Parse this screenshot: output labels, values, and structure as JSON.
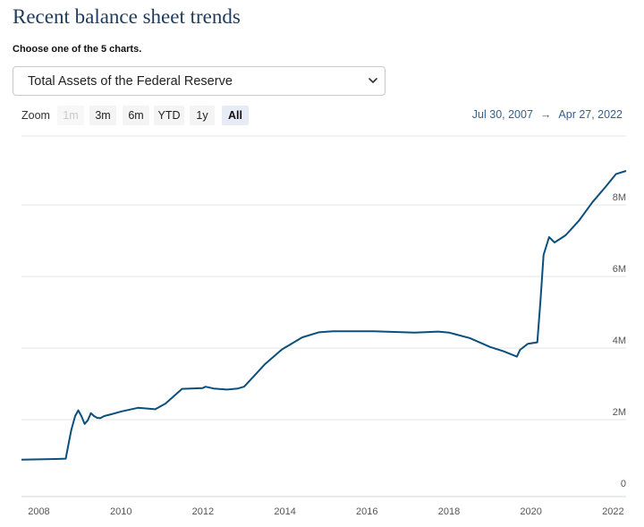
{
  "page": {
    "title": "Recent balance sheet trends",
    "chooser_label": "Choose one of the 5 charts.",
    "selected_chart": "Total Assets of the Federal Reserve"
  },
  "zoom": {
    "label": "Zoom",
    "buttons": [
      {
        "label": "1m",
        "state": "disabled"
      },
      {
        "label": "3m",
        "state": "normal"
      },
      {
        "label": "6m",
        "state": "normal"
      },
      {
        "label": "YTD",
        "state": "normal"
      },
      {
        "label": "1y",
        "state": "normal"
      },
      {
        "label": "All",
        "state": "active"
      }
    ]
  },
  "range": {
    "from": "Jul 30, 2007",
    "arrow": "→",
    "to": "Apr 27, 2022"
  },
  "colors": {
    "line": "#0b4f7c",
    "accent_text": "#335f8c",
    "grid": "#e6e6e6"
  },
  "chart_data": {
    "type": "line",
    "title": "",
    "xlabel": "",
    "ylabel": "",
    "x_range": [
      "2007-07-30",
      "2022-04-27"
    ],
    "ylim": [
      0,
      10000000
    ],
    "y_ticks": [
      0,
      2000000,
      4000000,
      6000000,
      8000000
    ],
    "y_tick_labels": [
      "0",
      "2M",
      "4M",
      "6M",
      "8M"
    ],
    "x_ticks": [
      "2008",
      "2010",
      "2012",
      "2014",
      "2016",
      "2018",
      "2020",
      "2022"
    ],
    "grid": true,
    "legend": "none",
    "series": [
      {
        "points": [
          [
            "2007-07-30",
            880000
          ],
          [
            "2008-01-01",
            890000
          ],
          [
            "2008-06-01",
            900000
          ],
          [
            "2008-08-27",
            910000
          ],
          [
            "2008-09-17",
            1250000
          ],
          [
            "2008-10-15",
            1700000
          ],
          [
            "2008-11-19",
            2100000
          ],
          [
            "2008-12-17",
            2260000
          ],
          [
            "2009-01-14",
            2100000
          ],
          [
            "2009-02-11",
            1880000
          ],
          [
            "2009-03-11",
            1980000
          ],
          [
            "2009-04-08",
            2180000
          ],
          [
            "2009-05-06",
            2100000
          ],
          [
            "2009-06-03",
            2050000
          ],
          [
            "2009-07-01",
            2040000
          ],
          [
            "2009-08-05",
            2100000
          ],
          [
            "2009-10-07",
            2150000
          ],
          [
            "2010-01-06",
            2230000
          ],
          [
            "2010-06-02",
            2330000
          ],
          [
            "2010-11-03",
            2290000
          ],
          [
            "2011-02-02",
            2450000
          ],
          [
            "2011-06-29",
            2860000
          ],
          [
            "2011-12-28",
            2880000
          ],
          [
            "2012-01-25",
            2920000
          ],
          [
            "2012-04-04",
            2870000
          ],
          [
            "2012-08-01",
            2840000
          ],
          [
            "2012-11-07",
            2870000
          ],
          [
            "2013-01-02",
            2920000
          ],
          [
            "2013-04-03",
            3230000
          ],
          [
            "2013-07-03",
            3540000
          ],
          [
            "2013-12-04",
            3960000
          ],
          [
            "2014-06-04",
            4300000
          ],
          [
            "2014-10-29",
            4440000
          ],
          [
            "2015-03-04",
            4470000
          ],
          [
            "2016-03-02",
            4470000
          ],
          [
            "2017-03-01",
            4430000
          ],
          [
            "2017-09-27",
            4460000
          ],
          [
            "2018-01-03",
            4430000
          ],
          [
            "2018-07-04",
            4280000
          ],
          [
            "2019-01-02",
            4030000
          ],
          [
            "2019-05-01",
            3910000
          ],
          [
            "2019-08-28",
            3760000
          ],
          [
            "2019-09-25",
            3950000
          ],
          [
            "2019-12-04",
            4120000
          ],
          [
            "2020-02-26",
            4160000
          ],
          [
            "2020-03-25",
            5300000
          ],
          [
            "2020-04-22",
            6600000
          ],
          [
            "2020-06-10",
            7100000
          ],
          [
            "2020-07-29",
            6950000
          ],
          [
            "2020-11-04",
            7150000
          ],
          [
            "2021-03-03",
            7560000
          ],
          [
            "2021-06-30",
            8070000
          ],
          [
            "2021-10-27",
            8510000
          ],
          [
            "2022-01-26",
            8860000
          ],
          [
            "2022-04-27",
            8950000
          ]
        ]
      }
    ]
  }
}
